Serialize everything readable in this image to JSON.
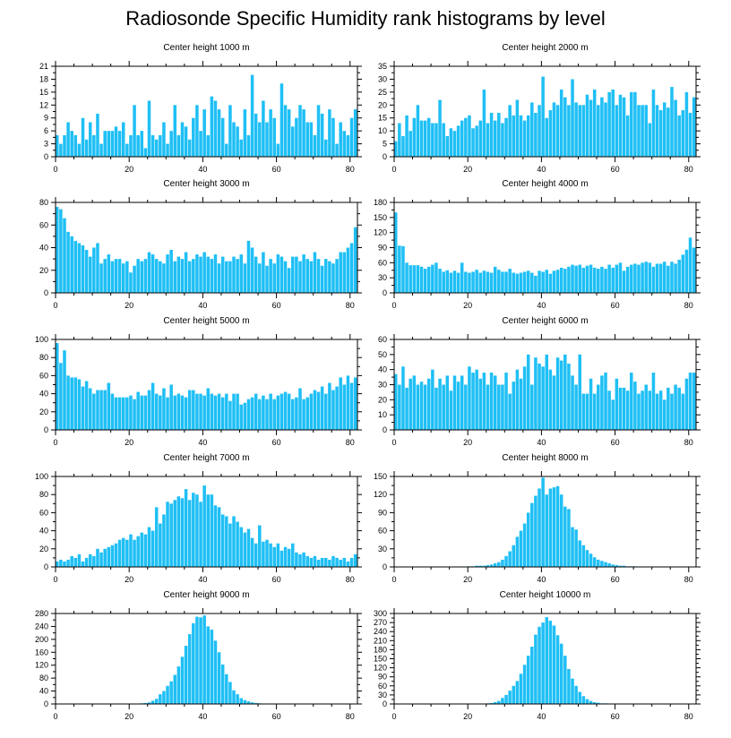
{
  "title": "Radiosonde Specific Humidity rank histograms by level",
  "colors": {
    "bar": "#1fbff5",
    "bar_edge": "#ffffff",
    "axis": "#000000"
  },
  "chart_data": [
    {
      "type": "bar",
      "title": "Center height 1000 m",
      "xlim": [
        0,
        82
      ],
      "ylim": [
        0,
        21
      ],
      "xticks": [
        0,
        20,
        40,
        60,
        80
      ],
      "yticks": [
        0,
        3,
        6,
        9,
        12,
        15,
        18,
        21
      ],
      "values": [
        5,
        3,
        5,
        8,
        6,
        5,
        3,
        9,
        4,
        8,
        5,
        10,
        3,
        6,
        6,
        6,
        7,
        6,
        8,
        3,
        5,
        12,
        5,
        6,
        2,
        13,
        5,
        4,
        5,
        8,
        3,
        6,
        12,
        5,
        8,
        7,
        4,
        9,
        12,
        6,
        11,
        5,
        14,
        13,
        11,
        9,
        3,
        12,
        8,
        7,
        4,
        11,
        5,
        19,
        10,
        8,
        13,
        8,
        11,
        9,
        3,
        17,
        12,
        11,
        7,
        9,
        12,
        11,
        8,
        8,
        5,
        12,
        10,
        4,
        11,
        9,
        3,
        8,
        6,
        5,
        9,
        11
      ]
    },
    {
      "type": "bar",
      "title": "Center height 2000 m",
      "xlim": [
        0,
        82
      ],
      "ylim": [
        0,
        35
      ],
      "xticks": [
        0,
        20,
        40,
        60,
        80
      ],
      "yticks": [
        0,
        5,
        10,
        15,
        20,
        25,
        30,
        35
      ],
      "values": [
        6,
        13,
        8,
        16,
        10,
        15,
        20,
        14,
        14,
        15,
        13,
        13,
        22,
        13,
        8,
        11,
        10,
        12,
        14,
        15,
        16,
        11,
        12,
        14,
        26,
        13,
        17,
        14,
        17,
        13,
        15,
        20,
        16,
        22,
        16,
        14,
        16,
        21,
        17,
        20,
        31,
        15,
        18,
        21,
        20,
        26,
        23,
        20,
        30,
        21,
        20,
        20,
        24,
        22,
        26,
        20,
        23,
        21,
        25,
        26,
        20,
        24,
        23,
        16,
        25,
        25,
        20,
        20,
        20,
        13,
        26,
        20,
        18,
        21,
        19,
        27,
        22,
        16,
        18,
        25,
        17,
        23
      ]
    },
    {
      "type": "bar",
      "title": "Center height 3000 m",
      "xlim": [
        0,
        82
      ],
      "ylim": [
        0,
        80
      ],
      "xticks": [
        0,
        20,
        40,
        60,
        80
      ],
      "yticks": [
        0,
        20,
        40,
        60,
        80
      ],
      "values": [
        76,
        74,
        66,
        54,
        50,
        46,
        44,
        42,
        38,
        32,
        40,
        44,
        26,
        30,
        34,
        28,
        30,
        30,
        26,
        28,
        18,
        24,
        30,
        28,
        30,
        36,
        34,
        30,
        28,
        26,
        34,
        38,
        28,
        32,
        30,
        36,
        28,
        30,
        34,
        32,
        36,
        32,
        30,
        34,
        26,
        32,
        28,
        28,
        32,
        30,
        34,
        26,
        46,
        40,
        32,
        26,
        36,
        24,
        30,
        26,
        34,
        32,
        28,
        22,
        32,
        32,
        28,
        34,
        30,
        28,
        36,
        30,
        24,
        30,
        28,
        26,
        30,
        36,
        36,
        40,
        44,
        58
      ]
    },
    {
      "type": "bar",
      "title": "Center height 4000 m",
      "xlim": [
        0,
        82
      ],
      "ylim": [
        0,
        180
      ],
      "xticks": [
        0,
        20,
        40,
        60,
        80
      ],
      "yticks": [
        0,
        30,
        60,
        90,
        120,
        150,
        180
      ],
      "values": [
        160,
        94,
        93,
        60,
        55,
        55,
        55,
        52,
        48,
        52,
        56,
        60,
        48,
        42,
        45,
        40,
        44,
        40,
        60,
        42,
        40,
        42,
        46,
        40,
        44,
        42,
        40,
        52,
        46,
        42,
        42,
        48,
        40,
        38,
        40,
        42,
        44,
        40,
        34,
        44,
        42,
        46,
        38,
        44,
        46,
        50,
        48,
        52,
        56,
        54,
        56,
        50,
        54,
        56,
        50,
        48,
        52,
        48,
        56,
        50,
        56,
        60,
        44,
        52,
        56,
        58,
        56,
        60,
        62,
        60,
        52,
        58,
        58,
        62,
        54,
        62,
        58,
        66,
        76,
        86,
        110,
        90
      ]
    },
    {
      "type": "bar",
      "title": "Center height 5000 m",
      "xlim": [
        0,
        82
      ],
      "ylim": [
        0,
        100
      ],
      "xticks": [
        0,
        20,
        40,
        60,
        80
      ],
      "yticks": [
        0,
        20,
        40,
        60,
        80,
        100
      ],
      "values": [
        96,
        74,
        88,
        60,
        58,
        58,
        56,
        48,
        54,
        46,
        40,
        44,
        44,
        44,
        52,
        40,
        36,
        36,
        36,
        36,
        38,
        34,
        42,
        38,
        38,
        44,
        52,
        40,
        38,
        46,
        36,
        50,
        38,
        40,
        38,
        36,
        44,
        44,
        40,
        40,
        38,
        46,
        40,
        38,
        40,
        36,
        40,
        32,
        40,
        40,
        28,
        30,
        34,
        36,
        40,
        34,
        38,
        34,
        40,
        34,
        38,
        40,
        42,
        40,
        34,
        36,
        46,
        34,
        36,
        40,
        44,
        42,
        48,
        40,
        52,
        44,
        48,
        58,
        50,
        60,
        52,
        58
      ]
    },
    {
      "type": "bar",
      "title": "Center height 6000 m",
      "xlim": [
        0,
        82
      ],
      "ylim": [
        0,
        60
      ],
      "xticks": [
        0,
        20,
        40,
        60,
        80
      ],
      "yticks": [
        0,
        10,
        20,
        30,
        40,
        50,
        60
      ],
      "values": [
        37,
        30,
        42,
        28,
        34,
        36,
        30,
        32,
        30,
        34,
        40,
        28,
        34,
        30,
        36,
        26,
        36,
        32,
        36,
        30,
        42,
        38,
        40,
        34,
        38,
        30,
        38,
        36,
        30,
        30,
        38,
        24,
        32,
        40,
        34,
        42,
        50,
        30,
        48,
        44,
        42,
        50,
        40,
        36,
        48,
        46,
        50,
        44,
        36,
        30,
        50,
        24,
        24,
        34,
        24,
        30,
        36,
        38,
        26,
        20,
        34,
        28,
        28,
        26,
        38,
        32,
        24,
        26,
        30,
        26,
        38,
        24,
        26,
        20,
        28,
        24,
        30,
        28,
        24,
        34,
        38,
        38
      ]
    },
    {
      "type": "bar",
      "title": "Center height 7000 m",
      "xlim": [
        0,
        82
      ],
      "ylim": [
        0,
        100
      ],
      "xticks": [
        0,
        20,
        40,
        60,
        80
      ],
      "yticks": [
        0,
        20,
        40,
        60,
        80,
        100
      ],
      "values": [
        6,
        8,
        6,
        8,
        12,
        10,
        14,
        6,
        10,
        14,
        12,
        20,
        16,
        20,
        22,
        24,
        26,
        30,
        32,
        30,
        36,
        30,
        34,
        38,
        36,
        44,
        40,
        66,
        48,
        58,
        72,
        70,
        74,
        78,
        76,
        86,
        74,
        82,
        80,
        72,
        90,
        80,
        80,
        68,
        66,
        58,
        56,
        48,
        56,
        50,
        44,
        38,
        42,
        32,
        26,
        46,
        28,
        30,
        26,
        22,
        26,
        18,
        22,
        20,
        26,
        16,
        14,
        16,
        12,
        10,
        12,
        8,
        10,
        10,
        8,
        12,
        10,
        8,
        10,
        6,
        10,
        14
      ]
    },
    {
      "type": "bar",
      "title": "Center height 8000 m",
      "xlim": [
        0,
        82
      ],
      "ylim": [
        0,
        150
      ],
      "xticks": [
        0,
        20,
        40,
        60,
        80
      ],
      "yticks": [
        0,
        30,
        60,
        90,
        120,
        150
      ],
      "values": [
        0,
        0,
        0,
        0,
        0,
        0,
        0,
        0,
        0,
        0,
        0,
        0,
        0,
        0,
        0,
        0,
        0,
        0,
        0,
        0,
        1,
        1,
        2,
        2,
        2,
        3,
        4,
        6,
        8,
        12,
        18,
        26,
        36,
        50,
        60,
        72,
        90,
        106,
        118,
        130,
        148,
        120,
        130,
        132,
        134,
        120,
        100,
        96,
        66,
        62,
        44,
        36,
        28,
        22,
        16,
        12,
        10,
        8,
        6,
        4,
        3,
        2,
        2,
        1,
        1,
        1,
        0,
        0,
        0,
        0,
        0,
        0,
        0,
        0,
        0,
        0,
        0,
        0,
        0,
        0,
        0,
        0
      ]
    },
    {
      "type": "bar",
      "title": "Center height 9000 m",
      "xlim": [
        0,
        82
      ],
      "ylim": [
        0,
        280
      ],
      "xticks": [
        0,
        20,
        40,
        60,
        80
      ],
      "yticks": [
        0,
        40,
        80,
        120,
        160,
        200,
        240,
        280
      ],
      "values": [
        0,
        0,
        0,
        0,
        0,
        0,
        0,
        0,
        0,
        0,
        0,
        0,
        0,
        0,
        0,
        0,
        0,
        0,
        0,
        0,
        0,
        0,
        1,
        2,
        3,
        5,
        10,
        16,
        30,
        40,
        56,
        70,
        90,
        116,
        146,
        180,
        216,
        250,
        270,
        268,
        274,
        240,
        230,
        196,
        160,
        122,
        92,
        68,
        42,
        30,
        18,
        12,
        8,
        5,
        3,
        2,
        1,
        1,
        0,
        0,
        0,
        0,
        0,
        0,
        0,
        0,
        0,
        0,
        0,
        0,
        0,
        0,
        0,
        0,
        0,
        0,
        0,
        0,
        0,
        0,
        0,
        0
      ]
    },
    {
      "type": "bar",
      "title": "Center height 10000 m",
      "xlim": [
        0,
        82
      ],
      "ylim": [
        0,
        300
      ],
      "xticks": [
        0,
        20,
        40,
        60,
        80
      ],
      "yticks": [
        0,
        30,
        60,
        90,
        120,
        150,
        180,
        210,
        240,
        270,
        300
      ],
      "values": [
        0,
        0,
        0,
        0,
        0,
        0,
        0,
        0,
        0,
        0,
        0,
        0,
        0,
        0,
        0,
        0,
        0,
        0,
        0,
        0,
        0,
        0,
        0,
        0,
        1,
        2,
        3,
        6,
        10,
        20,
        30,
        44,
        60,
        76,
        100,
        130,
        160,
        190,
        230,
        256,
        270,
        288,
        276,
        260,
        228,
        200,
        160,
        116,
        84,
        60,
        40,
        26,
        16,
        10,
        6,
        4,
        2,
        2,
        1,
        1,
        0,
        0,
        0,
        0,
        0,
        0,
        0,
        0,
        0,
        0,
        0,
        0,
        0,
        0,
        0,
        0,
        0,
        0,
        0,
        0,
        0,
        0
      ]
    }
  ]
}
